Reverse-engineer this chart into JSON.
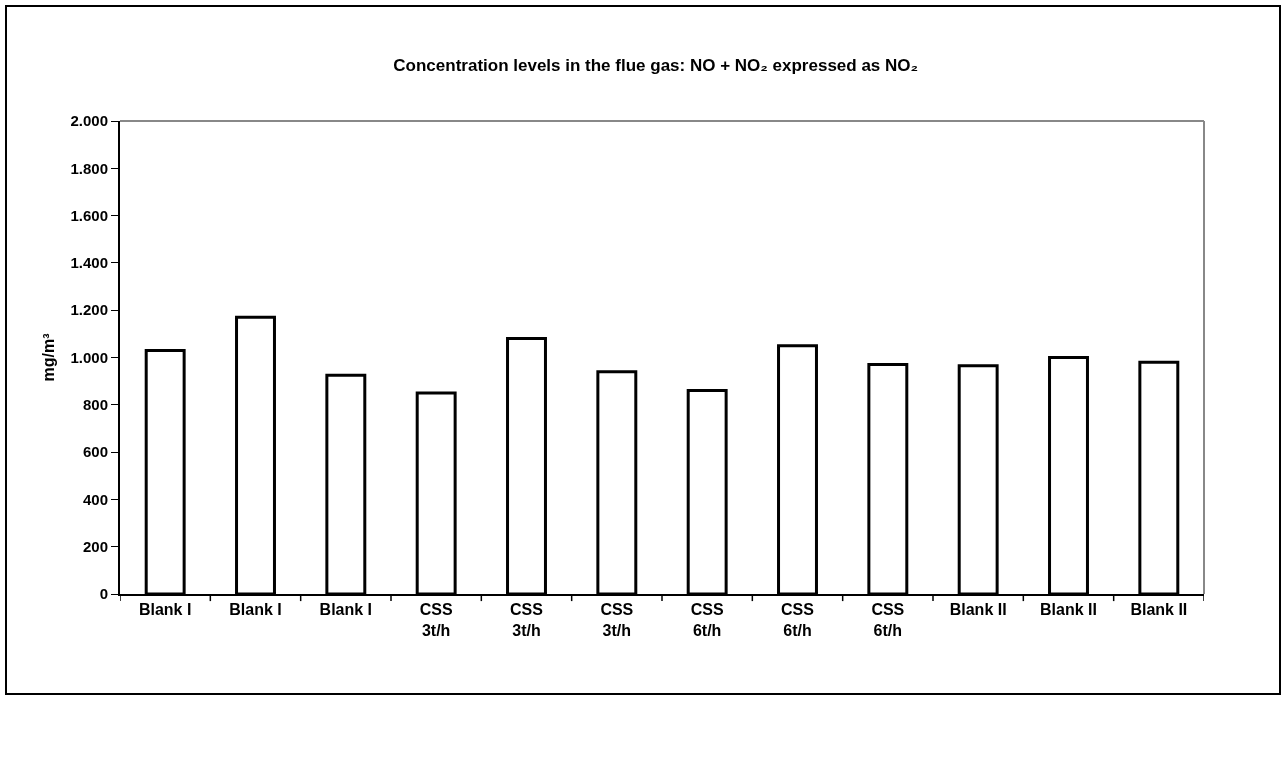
{
  "chart_data": {
    "type": "bar",
    "title": "Concentration levels in the flue gas: NO + NO₂ expressed as NO₂",
    "ylabel": "mg/m³",
    "categories": [
      "Blank I",
      "Blank I",
      "Blank I",
      "CSS\n3t/h",
      "CSS\n3t/h",
      "CSS\n3t/h",
      "CSS\n6t/h",
      "CSS\n6t/h",
      "CSS\n6t/h",
      "Blank II",
      "Blank II",
      "Blank II"
    ],
    "values": [
      1030,
      1170,
      925,
      850,
      1080,
      940,
      860,
      1050,
      970,
      965,
      1000,
      980
    ],
    "color": "#ffffff",
    "ylim": [
      0,
      2000
    ],
    "yticks": [
      0,
      200,
      400,
      600,
      800,
      {
        "value": 1000,
        "label": "1.000"
      },
      {
        "value": 1200,
        "label": "1.200"
      },
      {
        "value": 1400,
        "label": "1.400"
      },
      {
        "value": 1600,
        "label": "1.600"
      },
      {
        "value": 1800,
        "label": "1.800"
      },
      {
        "value": 2000,
        "label": "2.000"
      }
    ],
    "grid": false
  }
}
